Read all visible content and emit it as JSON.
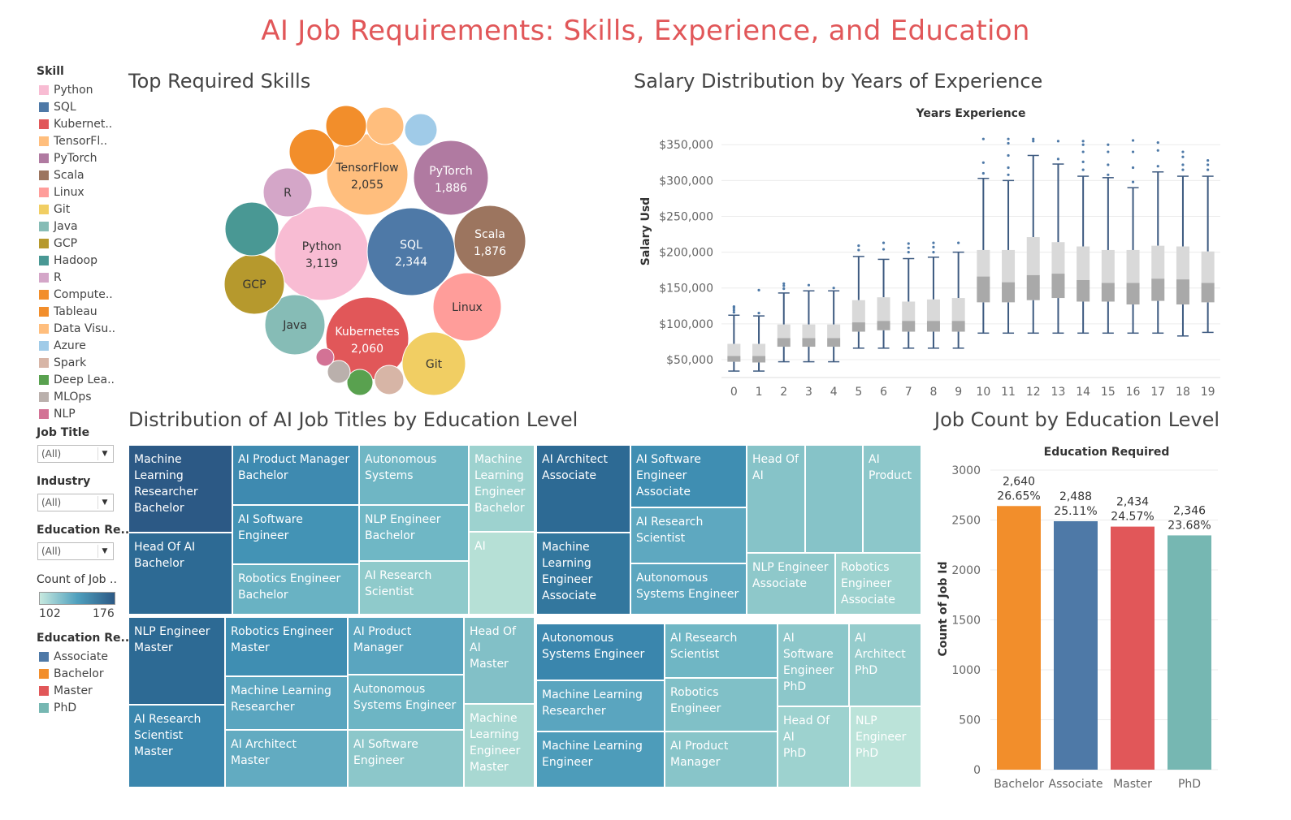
{
  "dashboard": {
    "title": "AI Job Requirements: Skills, Experience, and Education"
  },
  "sidebar": {
    "skill_legend_title": "Skill",
    "skills": [
      {
        "label": "Python",
        "color": "#f8bcd3"
      },
      {
        "label": "SQL",
        "color": "#4e79a7"
      },
      {
        "label": "Kubernet..",
        "color": "#e15759"
      },
      {
        "label": "TensorFl..",
        "color": "#ffbe7d"
      },
      {
        "label": "PyTorch",
        "color": "#b07aa1"
      },
      {
        "label": "Scala",
        "color": "#9c755f"
      },
      {
        "label": "Linux",
        "color": "#ff9d9a"
      },
      {
        "label": "Git",
        "color": "#f1ce63"
      },
      {
        "label": "Java",
        "color": "#86bcb6"
      },
      {
        "label": "GCP",
        "color": "#b6992d"
      },
      {
        "label": "Hadoop",
        "color": "#499894"
      },
      {
        "label": "R",
        "color": "#d4a6c8"
      },
      {
        "label": "Compute..",
        "color": "#f28e2b"
      },
      {
        "label": "Tableau",
        "color": "#f28e2b"
      },
      {
        "label": "Data Visu..",
        "color": "#ffbe7d"
      },
      {
        "label": "Azure",
        "color": "#a0cbe8"
      },
      {
        "label": "Spark",
        "color": "#d7b5a6"
      },
      {
        "label": "Deep Lea..",
        "color": "#59a14f"
      },
      {
        "label": "MLOps",
        "color": "#bab0ac"
      },
      {
        "label": "NLP",
        "color": "#d37295"
      }
    ],
    "filters": [
      {
        "label": "Job Title",
        "value": "(All)"
      },
      {
        "label": "Industry",
        "value": "(All)"
      },
      {
        "label": "Education Re..",
        "value": "(All)"
      }
    ],
    "count_legend": {
      "title": "Count of Job ..",
      "min": "102",
      "max": "176",
      "color_low": "#c7e9df",
      "color_high": "#2c5985"
    },
    "edu_legend_title": "Education Re..",
    "education_levels": [
      {
        "label": "Associate",
        "color": "#4e79a7"
      },
      {
        "label": "Bachelor",
        "color": "#f28e2b"
      },
      {
        "label": "Master",
        "color": "#e15759"
      },
      {
        "label": "PhD",
        "color": "#76b7b2"
      }
    ]
  },
  "sections": {
    "skills_title": "Top Required Skills",
    "salary_title": "Salary Distribution by Years of Experience",
    "treemap_title": "Distribution of AI Job Titles by Education Level",
    "jobcount_title": "Job Count by Education Level"
  },
  "chart_data": [
    {
      "type": "bubble",
      "title": "Top Required Skills",
      "bubbles": [
        {
          "label": "Python",
          "value": 3119,
          "show_value": "3,119",
          "color": "#f8bcd3"
        },
        {
          "label": "SQL",
          "value": 2344,
          "show_value": "2,344",
          "color": "#4e79a7"
        },
        {
          "label": "Kubernetes",
          "value": 2060,
          "show_value": "2,060",
          "color": "#e15759"
        },
        {
          "label": "TensorFlow",
          "value": 2055,
          "show_value": "2,055",
          "color": "#ffbe7d"
        },
        {
          "label": "PyTorch",
          "value": 1886,
          "show_value": "1,886",
          "color": "#b07aa1"
        },
        {
          "label": "Scala",
          "value": 1876,
          "show_value": "1,876",
          "color": "#9c755f"
        },
        {
          "label": "Linux",
          "value": null,
          "show_value": "",
          "color": "#ff9d9a"
        },
        {
          "label": "Git",
          "value": null,
          "show_value": "",
          "color": "#f1ce63"
        },
        {
          "label": "Java",
          "value": null,
          "show_value": "",
          "color": "#86bcb6"
        },
        {
          "label": "GCP",
          "value": null,
          "show_value": "",
          "color": "#b6992d"
        },
        {
          "label": "Hadoop",
          "value": null,
          "show_value": "",
          "color": "#499894"
        },
        {
          "label": "R",
          "value": null,
          "show_value": "",
          "color": "#d4a6c8"
        },
        {
          "label": "Compute..",
          "value": null,
          "show_value": "",
          "color": "#f28e2b"
        },
        {
          "label": "Tableau",
          "value": null,
          "show_value": "",
          "color": "#f28e2b"
        },
        {
          "label": "Data Visu..",
          "value": null,
          "show_value": "",
          "color": "#ffbe7d"
        },
        {
          "label": "Azure",
          "value": null,
          "show_value": "",
          "color": "#a0cbe8"
        },
        {
          "label": "Spark",
          "value": null,
          "show_value": "",
          "color": "#d7b5a6"
        },
        {
          "label": "Deep Lea..",
          "value": null,
          "show_value": "",
          "color": "#59a14f"
        },
        {
          "label": "MLOps",
          "value": null,
          "show_value": "",
          "color": "#bab0ac"
        },
        {
          "label": "NLP",
          "value": null,
          "show_value": "",
          "color": "#d37295"
        }
      ]
    },
    {
      "type": "boxplot",
      "title": "Salary Distribution by Years of Experience",
      "xlabel": "Years Experience",
      "ylabel": "Salary Usd",
      "y_ticks": [
        "$50,000",
        "$100,000",
        "$150,000",
        "$200,000",
        "$250,000",
        "$300,000",
        "$350,000"
      ],
      "y_tick_values": [
        50000,
        100000,
        150000,
        200000,
        250000,
        300000,
        350000
      ],
      "ylim": [
        25000,
        365000
      ],
      "categories": [
        "0",
        "1",
        "2",
        "3",
        "4",
        "5",
        "6",
        "7",
        "8",
        "9",
        "10",
        "11",
        "12",
        "13",
        "14",
        "15",
        "16",
        "17",
        "18",
        "19"
      ],
      "boxes": [
        {
          "min": 34000,
          "q1": 47000,
          "median": 55000,
          "q3": 72000,
          "max": 112000,
          "outliers": [
            116000,
            119000,
            122000,
            124000
          ]
        },
        {
          "min": 34000,
          "q1": 46000,
          "median": 55000,
          "q3": 72000,
          "max": 111000,
          "outliers": [
            115000,
            147000
          ]
        },
        {
          "min": 47000,
          "q1": 68000,
          "median": 80000,
          "q3": 99000,
          "max": 143000,
          "outliers": [
            149000,
            153000,
            156000
          ]
        },
        {
          "min": 47000,
          "q1": 68000,
          "median": 80000,
          "q3": 99000,
          "max": 146000,
          "outliers": [
            154000
          ]
        },
        {
          "min": 47000,
          "q1": 68000,
          "median": 80000,
          "q3": 99000,
          "max": 146000,
          "outliers": [
            150000
          ]
        },
        {
          "min": 66000,
          "q1": 89000,
          "median": 102000,
          "q3": 133000,
          "max": 194000,
          "outliers": [
            203000,
            209000
          ]
        },
        {
          "min": 66000,
          "q1": 91000,
          "median": 104000,
          "q3": 137000,
          "max": 190000,
          "outliers": [
            204000,
            213000
          ]
        },
        {
          "min": 66000,
          "q1": 89000,
          "median": 104000,
          "q3": 131000,
          "max": 191000,
          "outliers": [
            200000,
            206000,
            212000
          ]
        },
        {
          "min": 66000,
          "q1": 89000,
          "median": 104000,
          "q3": 134000,
          "max": 193000,
          "outliers": [
            200000,
            207000,
            213000
          ]
        },
        {
          "min": 66000,
          "q1": 89000,
          "median": 104000,
          "q3": 136000,
          "max": 200000,
          "outliers": [
            213000
          ]
        },
        {
          "min": 87000,
          "q1": 130000,
          "median": 166000,
          "q3": 203000,
          "max": 303000,
          "outliers": [
            310000,
            325000,
            358000
          ]
        },
        {
          "min": 87000,
          "q1": 130000,
          "median": 158000,
          "q3": 203000,
          "max": 300000,
          "outliers": [
            308000,
            318000,
            335000,
            352000,
            358000
          ]
        },
        {
          "min": 87000,
          "q1": 133000,
          "median": 168000,
          "q3": 221000,
          "max": 335000,
          "outliers": [
            355000,
            358000
          ]
        },
        {
          "min": 87000,
          "q1": 136000,
          "median": 170000,
          "q3": 214000,
          "max": 323000,
          "outliers": [
            330000,
            355000
          ]
        },
        {
          "min": 87000,
          "q1": 131000,
          "median": 161000,
          "q3": 208000,
          "max": 306000,
          "outliers": [
            315000,
            326000,
            340000,
            350000,
            355000
          ]
        },
        {
          "min": 87000,
          "q1": 131000,
          "median": 157000,
          "q3": 203000,
          "max": 304000,
          "outliers": [
            308000,
            322000,
            340000,
            350000
          ]
        },
        {
          "min": 87000,
          "q1": 127000,
          "median": 157000,
          "q3": 203000,
          "max": 290000,
          "outliers": [
            298000,
            318000,
            340000,
            356000
          ]
        },
        {
          "min": 87000,
          "q1": 132000,
          "median": 163000,
          "q3": 209000,
          "max": 312000,
          "outliers": [
            320000,
            342000,
            353000
          ]
        },
        {
          "min": 83000,
          "q1": 127000,
          "median": 162000,
          "q3": 208000,
          "max": 306000,
          "outliers": [
            315000,
            322000,
            333000,
            340000
          ]
        },
        {
          "min": 88000,
          "q1": 130000,
          "median": 157000,
          "q3": 201000,
          "max": 306000,
          "outliers": [
            315000,
            322000,
            328000
          ]
        }
      ]
    },
    {
      "type": "treemap",
      "title": "Distribution of AI Job Titles by Education Level",
      "groups": [
        {
          "name": "Bachelor",
          "cells": [
            {
              "label": "Machine\nLearning\nResearcher\nBachelor",
              "color": "#2c5985",
              "dark": true
            },
            {
              "label": "Head Of AI\nBachelor",
              "color": "#2d6a94",
              "dark": true
            },
            {
              "label": "AI Product Manager\nBachelor",
              "color": "#3e8ab0",
              "dark": true
            },
            {
              "label": "AI Software\nEngineer",
              "color": "#4393b5",
              "dark": true
            },
            {
              "label": "Robotics Engineer\nBachelor",
              "color": "#69b2c3",
              "dark": false
            },
            {
              "label": "Autonomous\nSystems",
              "color": "#6fb6c4",
              "dark": false
            },
            {
              "label": "NLP Engineer\nBachelor",
              "color": "#6fb7c5",
              "dark": false
            },
            {
              "label": "AI Research\nScientist",
              "color": "#8fcacb",
              "dark": false
            },
            {
              "label": "Machine\nLearning\nEngineer\nBachelor",
              "color": "#9dd2cf",
              "dark": false
            },
            {
              "label": "AI",
              "color": "#b6e0d6",
              "dark": false
            }
          ]
        },
        {
          "name": "Associate",
          "cells": [
            {
              "label": "AI Architect\nAssociate",
              "color": "#2d6a94",
              "dark": true
            },
            {
              "label": "Machine\nLearning\nEngineer\nAssociate",
              "color": "#33779e",
              "dark": true
            },
            {
              "label": "AI Software\nEngineer\nAssociate",
              "color": "#3f8eb2",
              "dark": true
            },
            {
              "label": "AI Research\nScientist",
              "color": "#5ea8c0",
              "dark": false
            },
            {
              "label": "Autonomous\nSystems Engineer",
              "color": "#5ca6bf",
              "dark": false
            },
            {
              "label": "Head Of\nAI",
              "color": "#86c3c8",
              "dark": false
            },
            {
              "label": "",
              "color": "#86c3c8",
              "dark": false
            },
            {
              "label": "AI\nProduct",
              "color": "#8cc7ca",
              "dark": false
            },
            {
              "label": "NLP Engineer\nAssociate",
              "color": "#8ec8ca",
              "dark": false
            },
            {
              "label": "Robotics\nEngineer\nAssociate",
              "color": "#9dd2cf",
              "dark": false
            }
          ]
        },
        {
          "name": "Master",
          "cells": [
            {
              "label": "NLP Engineer\nMaster",
              "color": "#2d6a94",
              "dark": true
            },
            {
              "label": "AI Research\nScientist\nMaster",
              "color": "#3a86ad",
              "dark": true
            },
            {
              "label": "Robotics Engineer\nMaster",
              "color": "#3f8eb2",
              "dark": true
            },
            {
              "label": "Machine Learning\nResearcher",
              "color": "#5aa5bf",
              "dark": false
            },
            {
              "label": "AI Architect\nMaster",
              "color": "#62abc1",
              "dark": false
            },
            {
              "label": "AI Product\nManager",
              "color": "#5aa5bf",
              "dark": false
            },
            {
              "label": "Autonomous\nSystems Engineer",
              "color": "#6db5c4",
              "dark": false
            },
            {
              "label": "AI Software\nEngineer",
              "color": "#8cc7ca",
              "dark": false
            },
            {
              "label": "Head Of\nAI\nMaster",
              "color": "#82c0c7",
              "dark": false
            },
            {
              "label": "Machine\nLearning\nEngineer\nMaster",
              "color": "#a8d8d2",
              "dark": false
            }
          ]
        },
        {
          "name": "PhD",
          "cells": [
            {
              "label": "Autonomous\nSystems Engineer",
              "color": "#3a86ad",
              "dark": true
            },
            {
              "label": "Machine Learning\nResearcher",
              "color": "#5aa5bf",
              "dark": false
            },
            {
              "label": "Machine Learning\nEngineer",
              "color": "#4d9cba",
              "dark": false
            },
            {
              "label": "AI Research\nScientist",
              "color": "#6fb6c4",
              "dark": false
            },
            {
              "label": "Robotics\nEngineer",
              "color": "#80c0c7",
              "dark": false
            },
            {
              "label": "AI Product\nManager",
              "color": "#88c5c9",
              "dark": false
            },
            {
              "label": "AI\nSoftware\nEngineer\nPhD",
              "color": "#8cc7ca",
              "dark": false
            },
            {
              "label": "AI\nArchitect\nPhD",
              "color": "#95ccccc",
              "dark": false
            },
            {
              "label": "Head Of AI\nPhD",
              "color": "#9dd2cf",
              "dark": false
            },
            {
              "label": "NLP\nEngineer\nPhD",
              "color": "#bbe3d9",
              "dark": false
            }
          ]
        }
      ]
    },
    {
      "type": "bar",
      "title": "Job Count by Education Level",
      "xlabel": "Education Required",
      "ylabel": "Count of Job Id",
      "categories": [
        "Bachelor",
        "Associate",
        "Master",
        "PhD"
      ],
      "values": [
        2640,
        2488,
        2434,
        2346
      ],
      "value_labels": [
        "2,640",
        "2,488",
        "2,434",
        "2,346"
      ],
      "pct_labels": [
        "26.65%",
        "25.11%",
        "24.57%",
        "23.68%"
      ],
      "colors": [
        "#f28e2b",
        "#4e79a7",
        "#e15759",
        "#76b7b2"
      ],
      "y_ticks": [
        "0",
        "500",
        "1000",
        "1500",
        "2000",
        "2500",
        "3000"
      ],
      "ylim": [
        0,
        3000
      ]
    }
  ]
}
